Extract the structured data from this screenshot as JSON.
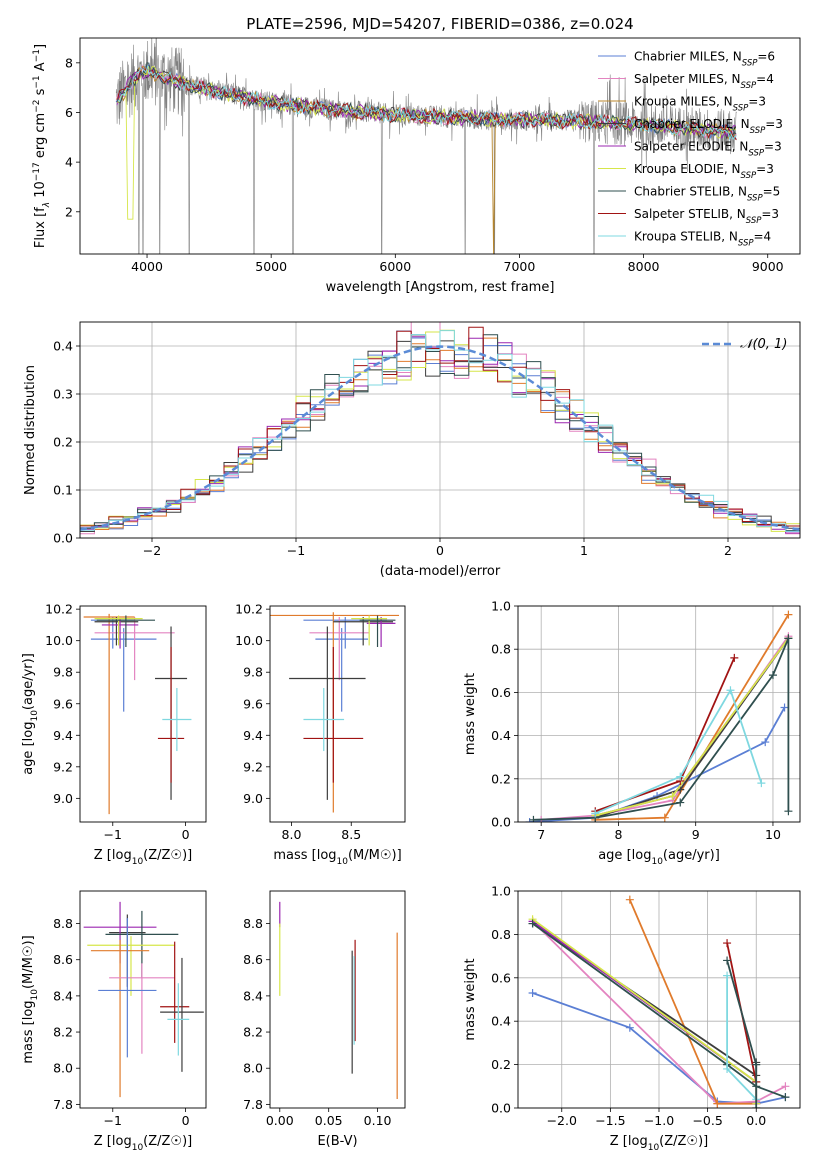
{
  "figure": {
    "title": "PLATE=2596, MJD=54207, FIBERID=0386, z=0.024"
  },
  "colors": {
    "data": "#808080",
    "grid": "#b0b0b0"
  },
  "chart_data": [
    {
      "id": "spectrum",
      "type": "line",
      "xlabel": "wavelength [Angstrom, rest frame]",
      "ylabel": "Flux [f_λ 10^-17 erg cm^-2 s^-1 A^-1]",
      "xlim": [
        3460,
        9260
      ],
      "ylim": [
        0.3,
        9.0
      ],
      "xticks": [
        4000,
        5000,
        6000,
        7000,
        8000,
        9000
      ],
      "yticks": [
        2,
        4,
        6,
        8
      ],
      "grid": false,
      "legend_position": "top-right",
      "continuum_x": [
        3750,
        3900,
        4000,
        4200,
        4500,
        5000,
        5500,
        6000,
        6500,
        7000,
        7500,
        8000,
        8500,
        8750
      ],
      "continuum_y": [
        6.4,
        7.4,
        7.7,
        7.3,
        6.9,
        6.4,
        6.1,
        5.9,
        5.8,
        5.7,
        5.65,
        5.5,
        5.3,
        5.2
      ],
      "absorption_lines_x": [
        3934,
        3968,
        4102,
        4340,
        4861,
        5175,
        5890,
        6563,
        6800,
        7600
      ],
      "series": [
        {
          "name": "Chabrier MILES, N_SSP=6",
          "label_main": "Chabrier MILES, N",
          "label_sub": "SSP",
          "label_tail": "=6",
          "color": "#5b7fd4",
          "width": 0.7
        },
        {
          "name": "Salpeter MILES, N_SSP=4",
          "label_main": "Salpeter MILES, N",
          "label_sub": "SSP",
          "label_tail": "=4",
          "color": "#e384c0",
          "width": 0.7
        },
        {
          "name": "Kroupa MILES, N_SSP=3",
          "label_main": "Kroupa MILES, N",
          "label_sub": "SSP",
          "label_tail": "=3",
          "color": "#b8862b",
          "width": 0.7
        },
        {
          "name": "Chabrier ELODIE, N_SSP=3",
          "label_main": "Chabrier ELODIE, N",
          "label_sub": "SSP",
          "label_tail": "=3",
          "color": "#3d3d3d",
          "width": 0.7
        },
        {
          "name": "Salpeter ELODIE, N_SSP=3",
          "label_main": "Salpeter ELODIE, N",
          "label_sub": "SSP",
          "label_tail": "=3",
          "color": "#9b27b0",
          "width": 0.7
        },
        {
          "name": "Kroupa ELODIE, N_SSP=3",
          "label_main": "Kroupa ELODIE, N",
          "label_sub": "SSP",
          "label_tail": "=3",
          "color": "#d6e64a",
          "width": 0.7
        },
        {
          "name": "Chabrier STELIB, N_SSP=5",
          "label_main": "Chabrier STELIB, N",
          "label_sub": "SSP",
          "label_tail": "=5",
          "color": "#2f4f4f",
          "width": 0.7
        },
        {
          "name": "Salpeter STELIB, N_SSP=3",
          "label_main": "Salpeter STELIB, N",
          "label_sub": "SSP",
          "label_tail": "=3",
          "color": "#a11313",
          "width": 0.7
        },
        {
          "name": "Kroupa STELIB, N_SSP=4",
          "label_main": "Kroupa STELIB, N",
          "label_sub": "SSP",
          "label_tail": "=4",
          "color": "#7fd8e0",
          "width": 0.7
        }
      ]
    },
    {
      "id": "residuals",
      "type": "histogram",
      "xlabel": "(data-model)/error",
      "ylabel": "Normed distribution",
      "xlim": [
        -2.5,
        2.5
      ],
      "ylim": [
        0.0,
        0.45
      ],
      "xticks": [
        -2,
        -1,
        0,
        1,
        2
      ],
      "yticks": [
        0.0,
        0.1,
        0.2,
        0.3,
        0.4
      ],
      "grid": true,
      "legend_position": "top-right",
      "gaussian_label": "𝒩(0, 1)",
      "gaussian_color": "#5b8bd6",
      "bin_width": 0.1,
      "colors": [
        "#5b7fd4",
        "#e384c0",
        "#e07b2c",
        "#3d3d3d",
        "#9b27b0",
        "#d6e64a",
        "#2f4f4f",
        "#a11313",
        "#7fd8e0"
      ]
    },
    {
      "id": "age_vs_Z",
      "type": "errorbar",
      "xlabel": "Z [log10(Z/Z☉)]",
      "ylabel": "age [log10(age/yr)]",
      "xlim": [
        -1.45,
        0.28
      ],
      "ylim": [
        8.85,
        10.22
      ],
      "xticks": [
        -1,
        0
      ],
      "yticks": [
        9.0,
        9.2,
        9.4,
        9.6,
        9.8,
        10.0,
        10.2
      ],
      "grid": false,
      "points": [
        {
          "x": -1.0,
          "xerr": 0.3,
          "y": 10.13,
          "yerr_lo": 0.18,
          "yerr_hi": 0.02,
          "color": "#5b7fd4"
        },
        {
          "x": -0.85,
          "xerr": 0.45,
          "y": 10.01,
          "yerr_lo": 0.46,
          "yerr_hi": 0.07,
          "color": "#5b7fd4"
        },
        {
          "x": -0.7,
          "xerr": 0.55,
          "y": 10.05,
          "yerr_lo": 0.3,
          "yerr_hi": 0.1,
          "color": "#e384c0"
        },
        {
          "x": -1.05,
          "xerr": 0.35,
          "y": 10.15,
          "yerr_lo": 1.25,
          "yerr_hi": 0.02,
          "color": "#e07b2c"
        },
        {
          "x": -0.95,
          "xerr": 0.3,
          "y": 10.12,
          "yerr_lo": 0.15,
          "yerr_hi": 0.03,
          "color": "#3d3d3d"
        },
        {
          "x": -0.9,
          "xerr": 0.25,
          "y": 10.1,
          "yerr_lo": 0.15,
          "yerr_hi": 0.04,
          "color": "#9b27b0"
        },
        {
          "x": -0.92,
          "xerr": 0.33,
          "y": 10.14,
          "yerr_lo": 0.17,
          "yerr_hi": 0.02,
          "color": "#d6e64a"
        },
        {
          "x": -0.2,
          "xerr": 0.22,
          "y": 9.76,
          "yerr_lo": 0.77,
          "yerr_hi": 0.33,
          "color": "#3d3d3d"
        },
        {
          "x": -0.82,
          "xerr": 0.4,
          "y": 10.13,
          "yerr_lo": 0.17,
          "yerr_hi": 0.03,
          "color": "#2f4f4f"
        },
        {
          "x": -0.2,
          "xerr": 0.18,
          "y": 9.38,
          "yerr_lo": 0.28,
          "yerr_hi": 0.58,
          "color": "#a11313"
        },
        {
          "x": -0.12,
          "xerr": 0.2,
          "y": 9.5,
          "yerr_lo": 0.2,
          "yerr_hi": 0.2,
          "color": "#7fd8e0"
        }
      ]
    },
    {
      "id": "age_vs_mass",
      "type": "errorbar",
      "xlabel": "mass [log10(M/M☉)]",
      "ylabel": "",
      "xlim": [
        7.82,
        8.95
      ],
      "ylim": [
        8.85,
        10.22
      ],
      "xticks": [
        8.0,
        8.5
      ],
      "yticks": [
        9.0,
        9.2,
        9.4,
        9.6,
        9.8,
        10.0,
        10.2
      ],
      "grid": false,
      "points": [
        {
          "x": 8.45,
          "xerr": 0.35,
          "y": 10.13,
          "yerr_lo": 0.18,
          "yerr_hi": 0.02,
          "color": "#5b7fd4"
        },
        {
          "x": 8.42,
          "xerr": 0.22,
          "y": 10.01,
          "yerr_lo": 0.46,
          "yerr_hi": 0.07,
          "color": "#5b7fd4"
        },
        {
          "x": 8.4,
          "xerr": 0.25,
          "y": 10.05,
          "yerr_lo": 0.3,
          "yerr_hi": 0.1,
          "color": "#e384c0"
        },
        {
          "x": 8.35,
          "xerr": 0.55,
          "y": 10.16,
          "yerr_lo": 1.25,
          "yerr_hi": 0.02,
          "color": "#e07b2c"
        },
        {
          "x": 8.6,
          "xerr": 0.25,
          "y": 10.12,
          "yerr_lo": 0.15,
          "yerr_hi": 0.03,
          "color": "#3d3d3d"
        },
        {
          "x": 8.75,
          "xerr": 0.12,
          "y": 10.11,
          "yerr_lo": 0.15,
          "yerr_hi": 0.04,
          "color": "#9b27b0"
        },
        {
          "x": 8.65,
          "xerr": 0.15,
          "y": 10.14,
          "yerr_lo": 0.17,
          "yerr_hi": 0.02,
          "color": "#d6e64a"
        },
        {
          "x": 8.3,
          "xerr": 0.32,
          "y": 9.76,
          "yerr_lo": 0.77,
          "yerr_hi": 0.33,
          "color": "#3d3d3d"
        },
        {
          "x": 8.72,
          "xerr": 0.15,
          "y": 10.13,
          "yerr_lo": 0.17,
          "yerr_hi": 0.03,
          "color": "#2f4f4f"
        },
        {
          "x": 8.35,
          "xerr": 0.25,
          "y": 9.38,
          "yerr_lo": 0.28,
          "yerr_hi": 0.58,
          "color": "#a11313"
        },
        {
          "x": 8.27,
          "xerr": 0.17,
          "y": 9.5,
          "yerr_lo": 0.2,
          "yerr_hi": 0.2,
          "color": "#7fd8e0"
        }
      ]
    },
    {
      "id": "massweight_vs_age",
      "type": "line",
      "xlabel": "age [log10(age/yr)]",
      "ylabel": "mass weight",
      "xlim": [
        6.7,
        10.35
      ],
      "ylim": [
        0.0,
        1.0
      ],
      "xticks": [
        7,
        8,
        9,
        10
      ],
      "yticks": [
        0.0,
        0.2,
        0.4,
        0.6,
        0.8,
        1.0
      ],
      "grid": true,
      "series": [
        {
          "color": "#5b7fd4",
          "x": [
            6.85,
            7.7,
            8.5,
            9.9,
            10.15
          ],
          "y": [
            0.0,
            0.02,
            0.12,
            0.37,
            0.53
          ]
        },
        {
          "color": "#e384c0",
          "x": [
            7.0,
            7.7,
            8.7,
            10.2
          ],
          "y": [
            0.01,
            0.03,
            0.1,
            0.86
          ]
        },
        {
          "color": "#e07b2c",
          "x": [
            7.7,
            8.6,
            10.2
          ],
          "y": [
            0.01,
            0.02,
            0.96
          ]
        },
        {
          "color": "#3d3d3d",
          "x": [
            7.7,
            8.8,
            10.2
          ],
          "y": [
            0.02,
            0.15,
            0.85
          ]
        },
        {
          "color": "#9b27b0",
          "x": [
            7.7,
            8.7,
            10.2
          ],
          "y": [
            0.03,
            0.12,
            0.85
          ]
        },
        {
          "color": "#d6e64a",
          "x": [
            7.7,
            8.7,
            10.2
          ],
          "y": [
            0.03,
            0.12,
            0.85
          ]
        },
        {
          "color": "#2f4f4f",
          "x": [
            6.9,
            7.7,
            8.8,
            10.0,
            10.2,
            10.2
          ],
          "y": [
            0.01,
            0.02,
            0.09,
            0.68,
            0.85,
            0.05
          ]
        },
        {
          "color": "#a11313",
          "x": [
            7.7,
            8.8,
            9.5
          ],
          "y": [
            0.05,
            0.19,
            0.76
          ]
        },
        {
          "color": "#7fd8e0",
          "x": [
            7.7,
            8.8,
            9.45,
            9.85
          ],
          "y": [
            0.04,
            0.21,
            0.61,
            0.18
          ]
        }
      ]
    },
    {
      "id": "mass_vs_Z",
      "type": "errorbar",
      "xlabel": "Z [log10(Z/Z☉)]",
      "ylabel": "mass [log10(M/M☉)]",
      "xlim": [
        -1.45,
        0.28
      ],
      "ylim": [
        7.78,
        8.98
      ],
      "xticks": [
        -1,
        0
      ],
      "yticks": [
        7.8,
        8.0,
        8.2,
        8.4,
        8.6,
        8.8
      ],
      "grid": false,
      "points": [
        {
          "x": -0.8,
          "xerr": 0.25,
          "y": 8.75,
          "yerr_lo": 0.3,
          "yerr_hi": 0.1,
          "color": "#3d3d3d"
        },
        {
          "x": -0.9,
          "xerr": 0.5,
          "y": 8.78,
          "yerr_lo": 0.2,
          "yerr_hi": 0.14,
          "color": "#9b27b0"
        },
        {
          "x": -0.6,
          "xerr": 0.5,
          "y": 8.74,
          "yerr_lo": 0.24,
          "yerr_hi": 0.13,
          "color": "#2f4f4f"
        },
        {
          "x": -0.75,
          "xerr": 0.6,
          "y": 8.68,
          "yerr_lo": 0.28,
          "yerr_hi": 0.05,
          "color": "#d6e64a"
        },
        {
          "x": -0.9,
          "xerr": 0.4,
          "y": 8.65,
          "yerr_lo": 0.81,
          "yerr_hi": 0.06,
          "color": "#e07b2c"
        },
        {
          "x": -0.6,
          "xerr": 0.45,
          "y": 8.5,
          "yerr_lo": 0.42,
          "yerr_hi": 0.08,
          "color": "#e384c0"
        },
        {
          "x": -0.8,
          "xerr": 0.4,
          "y": 8.43,
          "yerr_lo": 0.37,
          "yerr_hi": 0.4,
          "color": "#5b7fd4"
        },
        {
          "x": -0.15,
          "xerr": 0.2,
          "y": 8.34,
          "yerr_lo": 0.2,
          "yerr_hi": 0.36,
          "color": "#a11313"
        },
        {
          "x": -0.05,
          "xerr": 0.3,
          "y": 8.31,
          "yerr_lo": 0.33,
          "yerr_hi": 0.3,
          "color": "#3d3d3d"
        },
        {
          "x": -0.1,
          "xerr": 0.15,
          "y": 8.27,
          "yerr_lo": 0.2,
          "yerr_hi": 0.2,
          "color": "#7fd8e0"
        }
      ]
    },
    {
      "id": "mass_vs_EBV",
      "type": "errorbar",
      "xlabel": "E(B-V)",
      "ylabel": "",
      "xlim": [
        -0.01,
        0.128
      ],
      "ylim": [
        7.78,
        8.98
      ],
      "xticks": [
        0.0,
        0.05,
        0.1
      ],
      "yticks": [
        7.8,
        8.0,
        8.2,
        8.4,
        8.6,
        8.8
      ],
      "grid": false,
      "points": [
        {
          "x": 0.0,
          "xerr": 0,
          "y": 8.85,
          "yerr_lo": 0.07,
          "yerr_hi": 0.07,
          "color": "#9b27b0"
        },
        {
          "x": 0.0,
          "xerr": 0,
          "y": 8.6,
          "yerr_lo": 0.2,
          "yerr_hi": 0.2,
          "color": "#d6e64a"
        },
        {
          "x": 0.074,
          "xerr": 0,
          "y": 8.3,
          "yerr_lo": 0.33,
          "yerr_hi": 0.35,
          "color": "#3d3d3d"
        },
        {
          "x": 0.077,
          "xerr": 0,
          "y": 8.45,
          "yerr_lo": 0.3,
          "yerr_hi": 0.26,
          "color": "#a11313"
        },
        {
          "x": 0.076,
          "xerr": 0,
          "y": 8.4,
          "yerr_lo": 0.27,
          "yerr_hi": 0.22,
          "color": "#7fd8e0"
        },
        {
          "x": 0.12,
          "xerr": 0,
          "y": 8.25,
          "yerr_lo": 0.42,
          "yerr_hi": 0.5,
          "color": "#e07b2c"
        }
      ]
    },
    {
      "id": "massweight_vs_Z",
      "type": "line",
      "xlabel": "Z [log10(Z/Z☉)]",
      "ylabel": "mass weight",
      "xlim": [
        -2.45,
        0.45
      ],
      "ylim": [
        0.0,
        1.0
      ],
      "xticks": [
        -2.0,
        -1.5,
        -1.0,
        -0.5,
        0.0
      ],
      "yticks": [
        0.0,
        0.2,
        0.4,
        0.6,
        0.8,
        1.0
      ],
      "grid": true,
      "series": [
        {
          "color": "#5b7fd4",
          "x": [
            -2.3,
            -1.3,
            -0.4,
            0.0,
            0.3
          ],
          "y": [
            0.53,
            0.37,
            0.03,
            0.02,
            0.05
          ]
        },
        {
          "color": "#e384c0",
          "x": [
            -2.3,
            -0.4,
            0.0,
            0.3
          ],
          "y": [
            0.86,
            0.02,
            0.03,
            0.1
          ]
        },
        {
          "color": "#e07b2c",
          "x": [
            -1.3,
            -0.4,
            0.0
          ],
          "y": [
            0.96,
            0.02,
            0.02
          ]
        },
        {
          "color": "#3d3d3d",
          "x": [
            -2.3,
            0.0,
            0.0
          ],
          "y": [
            0.85,
            0.15,
            0.21
          ]
        },
        {
          "color": "#9b27b0",
          "x": [
            -2.3,
            0.0,
            0.0
          ],
          "y": [
            0.86,
            0.12,
            0.02
          ]
        },
        {
          "color": "#d6e64a",
          "x": [
            -2.3,
            0.0,
            0.0
          ],
          "y": [
            0.87,
            0.12,
            0.02
          ]
        },
        {
          "color": "#2f4f4f",
          "x": [
            -2.3,
            -0.3,
            0.0,
            0.3
          ],
          "y": [
            0.85,
            0.2,
            0.1,
            0.05
          ]
        },
        {
          "color": "#a11313",
          "x": [
            -0.3,
            0.0
          ],
          "y": [
            0.76,
            0.12
          ]
        },
        {
          "color": "#7fd8e0",
          "x": [
            -0.3,
            -0.3,
            0.0
          ],
          "y": [
            0.61,
            0.18,
            0.04
          ]
        },
        {
          "color": "#2f4f4f",
          "x": [
            -0.3,
            0.0,
            0.0
          ],
          "y": [
            0.68,
            0.2,
            0.0
          ]
        }
      ]
    }
  ]
}
